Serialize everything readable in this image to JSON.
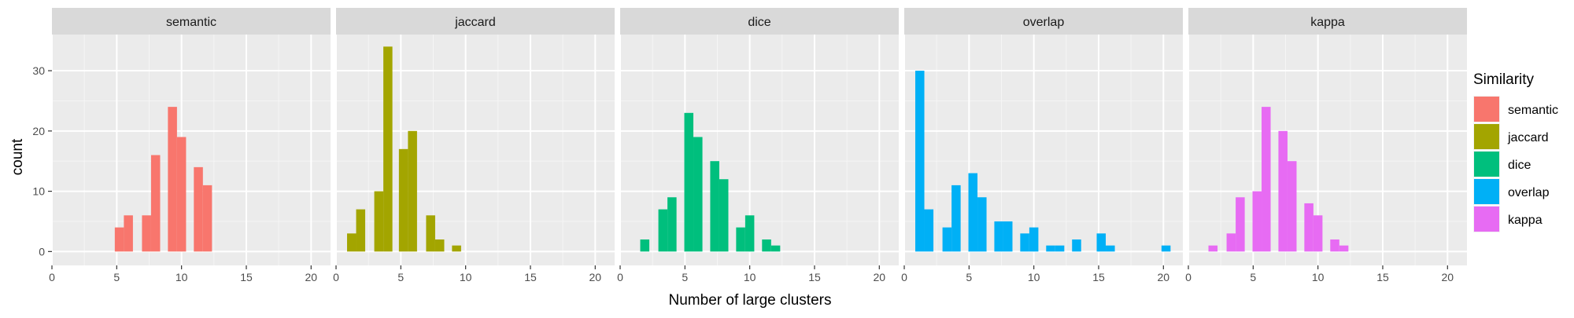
{
  "chart_data": {
    "type": "bar",
    "chart_kind": "faceted-histogram",
    "xlabel": "Number of large clusters",
    "ylabel": "count",
    "xlim": [
      0,
      21.5
    ],
    "ylim": [
      0,
      36
    ],
    "x_ticks": [
      0,
      5,
      10,
      15,
      20
    ],
    "y_ticks": [
      0,
      10,
      20,
      30
    ],
    "bin_width": 0.7,
    "grid": true,
    "legend": {
      "title": "Similarity",
      "position": "right",
      "entries": [
        "semantic",
        "jaccard",
        "dice",
        "overlap",
        "kappa"
      ]
    },
    "series": [
      {
        "name": "semantic",
        "color": "#F8766D",
        "x": [
          5.2,
          5.9,
          7.3,
          8.0,
          9.3,
          10.0,
          11.3,
          12.0
        ],
        "values": [
          4,
          6,
          6,
          16,
          24,
          19,
          14,
          11
        ]
      },
      {
        "name": "jaccard",
        "color": "#A3A500",
        "x": [
          1.2,
          1.9,
          3.3,
          4.0,
          5.2,
          5.9,
          7.3,
          8.0,
          9.3
        ],
        "values": [
          3,
          7,
          10,
          34,
          17,
          20,
          6,
          2,
          1
        ]
      },
      {
        "name": "dice",
        "color": "#00BF7D",
        "x": [
          1.9,
          3.3,
          4.0,
          5.3,
          6.0,
          7.3,
          8.0,
          9.3,
          10.0,
          11.3,
          12.0
        ],
        "values": [
          2,
          7,
          9,
          23,
          19,
          15,
          12,
          4,
          6,
          2,
          1
        ]
      },
      {
        "name": "overlap",
        "color": "#00B0F6",
        "x": [
          1.2,
          1.9,
          3.3,
          4.0,
          5.3,
          6.0,
          7.3,
          8.0,
          9.3,
          10.0,
          11.3,
          12.0,
          13.3,
          15.2,
          15.9,
          20.2
        ],
        "values": [
          30,
          7,
          4,
          11,
          13,
          9,
          5,
          5,
          3,
          4,
          1,
          1,
          2,
          3,
          1,
          1
        ]
      },
      {
        "name": "kappa",
        "color": "#E76BF3",
        "x": [
          1.9,
          3.3,
          4.0,
          5.3,
          6.0,
          7.3,
          8.0,
          9.3,
          10.0,
          11.3,
          12.0
        ],
        "values": [
          1,
          3,
          9,
          10,
          24,
          20,
          15,
          8,
          6,
          2,
          1
        ]
      }
    ]
  }
}
